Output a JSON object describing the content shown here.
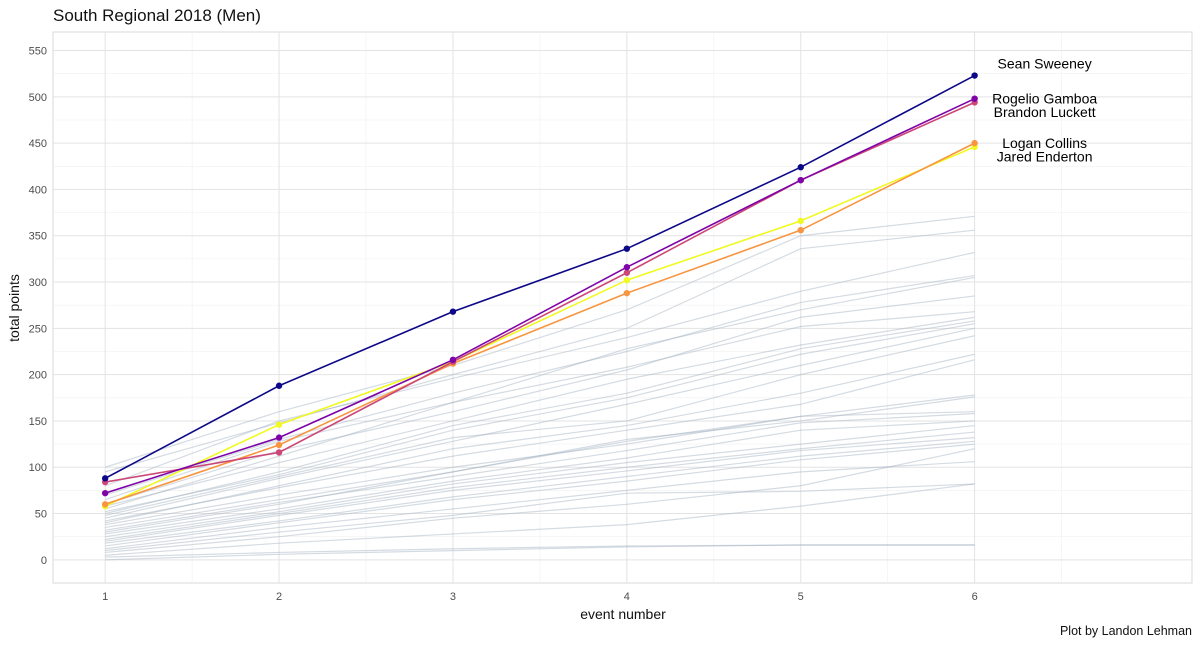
{
  "chart_data": {
    "type": "line",
    "title": "South Regional 2018 (Men)",
    "xlabel": "event number",
    "ylabel": "total points",
    "caption": "Plot by Landon Lehman",
    "x": [
      1,
      2,
      3,
      4,
      5,
      6
    ],
    "x_ticks": [
      "1",
      "2",
      "3",
      "4",
      "5",
      "6"
    ],
    "xlim": [
      0.7,
      7.25
    ],
    "ylim": [
      -25,
      570
    ],
    "y_ticks": [
      0,
      50,
      100,
      150,
      200,
      250,
      300,
      350,
      400,
      450,
      500,
      550
    ],
    "grid": true,
    "highlighted_series": [
      {
        "name": "Sean Sweeney",
        "color": "#0d0887",
        "values": [
          88,
          188,
          268,
          336,
          424,
          523
        ]
      },
      {
        "name": "Rogelio Gamboa",
        "color": "#7e03a8",
        "values": [
          72,
          132,
          216,
          316,
          410,
          498
        ]
      },
      {
        "name": "Brandon Luckett",
        "color": "#cc4778",
        "values": [
          84,
          116,
          214,
          310,
          410,
          494
        ]
      },
      {
        "name": "Logan Collins",
        "color": "#f89540",
        "values": [
          60,
          124,
          212,
          288,
          356,
          450
        ]
      },
      {
        "name": "Jared Enderton",
        "color": "#f0f921",
        "values": [
          58,
          146,
          214,
          302,
          366,
          446
        ]
      }
    ],
    "background_series_color": "#9fafbf",
    "background_series": [
      {
        "values": [
          100,
          160,
          210,
          270,
          350,
          371
        ]
      },
      {
        "values": [
          95,
          148,
          200,
          250,
          336,
          356
        ]
      },
      {
        "values": [
          80,
          150,
          196,
          240,
          290,
          332
        ]
      },
      {
        "values": [
          70,
          130,
          180,
          225,
          278,
          307
        ]
      },
      {
        "values": [
          65,
          128,
          170,
          228,
          270,
          305
        ]
      },
      {
        "values": [
          60,
          118,
          160,
          205,
          262,
          285
        ]
      },
      {
        "values": [
          55,
          112,
          170,
          208,
          252,
          268
        ]
      },
      {
        "values": [
          58,
          105,
          150,
          195,
          232,
          262
        ]
      },
      {
        "values": [
          50,
          95,
          145,
          180,
          228,
          258
        ]
      },
      {
        "values": [
          52,
          92,
          140,
          175,
          222,
          255
        ]
      },
      {
        "values": [
          45,
          88,
          128,
          168,
          210,
          250
        ]
      },
      {
        "values": [
          48,
          90,
          132,
          150,
          200,
          242
        ]
      },
      {
        "values": [
          40,
          80,
          120,
          145,
          180,
          222
        ]
      },
      {
        "values": [
          42,
          78,
          112,
          140,
          168,
          216
        ]
      },
      {
        "values": [
          38,
          70,
          100,
          125,
          155,
          178
        ]
      },
      {
        "values": [
          35,
          65,
          95,
          130,
          150,
          176
        ]
      },
      {
        "values": [
          30,
          60,
          95,
          128,
          155,
          160
        ]
      },
      {
        "values": [
          32,
          62,
          90,
          118,
          148,
          158
        ]
      },
      {
        "values": [
          28,
          55,
          85,
          110,
          140,
          150
        ]
      },
      {
        "values": [
          25,
          52,
          82,
          105,
          125,
          145
        ]
      },
      {
        "values": [
          22,
          50,
          78,
          100,
          120,
          138
        ]
      },
      {
        "values": [
          20,
          48,
          75,
          96,
          118,
          132
        ]
      },
      {
        "values": [
          18,
          42,
          68,
          90,
          112,
          128
        ]
      },
      {
        "values": [
          15,
          40,
          65,
          85,
          108,
          125
        ]
      },
      {
        "values": [
          12,
          35,
          55,
          75,
          95,
          106
        ]
      },
      {
        "values": [
          10,
          30,
          48,
          72,
          74,
          82
        ]
      },
      {
        "values": [
          8,
          25,
          45,
          60,
          80,
          120
        ]
      },
      {
        "values": [
          5,
          18,
          28,
          38,
          58,
          82
        ]
      },
      {
        "values": [
          3,
          8,
          12,
          15,
          16,
          16
        ]
      },
      {
        "values": [
          0,
          6,
          10,
          14,
          16,
          16
        ]
      }
    ]
  }
}
